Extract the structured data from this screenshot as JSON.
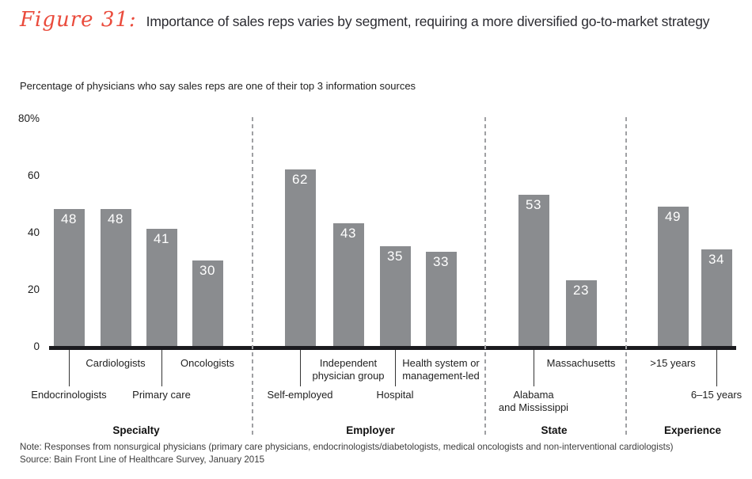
{
  "header": {
    "figure_label": "Figure 31:",
    "title": "Importance of sales reps varies by segment, requiring a more diversified go-to-market strategy"
  },
  "subtitle": "Percentage of physicians who say sales reps are one of their top 3 information sources",
  "chart_data": {
    "type": "bar",
    "title": "Percentage of physicians who say sales reps are one of their top 3 information sources",
    "xlabel": "",
    "ylabel": "",
    "ylim": [
      0,
      80
    ],
    "grid": false,
    "legend": false,
    "bar_color": "#8a8c8f",
    "y_axis_ticks": [
      {
        "value": 80,
        "label": "80%"
      },
      {
        "value": 60,
        "label": "60"
      },
      {
        "value": 40,
        "label": "40"
      },
      {
        "value": 20,
        "label": "20"
      },
      {
        "value": 0,
        "label": "0"
      }
    ],
    "groups": [
      {
        "name": "Specialty",
        "bars": [
          {
            "label": "Endocrinologists",
            "value": 48,
            "label_row": "lower"
          },
          {
            "label": "Cardiologists",
            "value": 48,
            "label_row": "upper"
          },
          {
            "label": "Primary care",
            "value": 41,
            "label_row": "lower"
          },
          {
            "label": "Oncologists",
            "value": 30,
            "label_row": "upper"
          }
        ]
      },
      {
        "name": "Employer",
        "bars": [
          {
            "label": "Self-employed",
            "value": 62,
            "label_row": "lower"
          },
          {
            "label": "Independent\nphysician group",
            "value": 43,
            "label_row": "upper"
          },
          {
            "label": "Hospital",
            "value": 35,
            "label_row": "lower"
          },
          {
            "label": "Health system or\nmanagement-led",
            "value": 33,
            "label_row": "upper"
          }
        ]
      },
      {
        "name": "State",
        "bars": [
          {
            "label": "Alabama\nand Mississippi",
            "value": 53,
            "label_row": "lower"
          },
          {
            "label": "Massachusetts",
            "value": 23,
            "label_row": "upper"
          }
        ]
      },
      {
        "name": "Experience",
        "bars": [
          {
            "label": ">15 years",
            "value": 49,
            "label_row": "upper"
          },
          {
            "label": "6–15 years",
            "value": 34,
            "label_row": "lower"
          }
        ]
      }
    ]
  },
  "footer": {
    "note": "Note: Responses from nonsurgical physicians (primary care physicians, endocrinologists/diabetologists, medical oncologists and non-interventional cardiologists)",
    "source": "Source: Bain Front Line of Healthcare Survey, January 2015"
  },
  "colors": {
    "accent_red": "#ea4b3c",
    "bar_gray": "#8a8c8f",
    "axis_black": "#1b1b1f",
    "separator_gray": "#9fa0a3"
  }
}
